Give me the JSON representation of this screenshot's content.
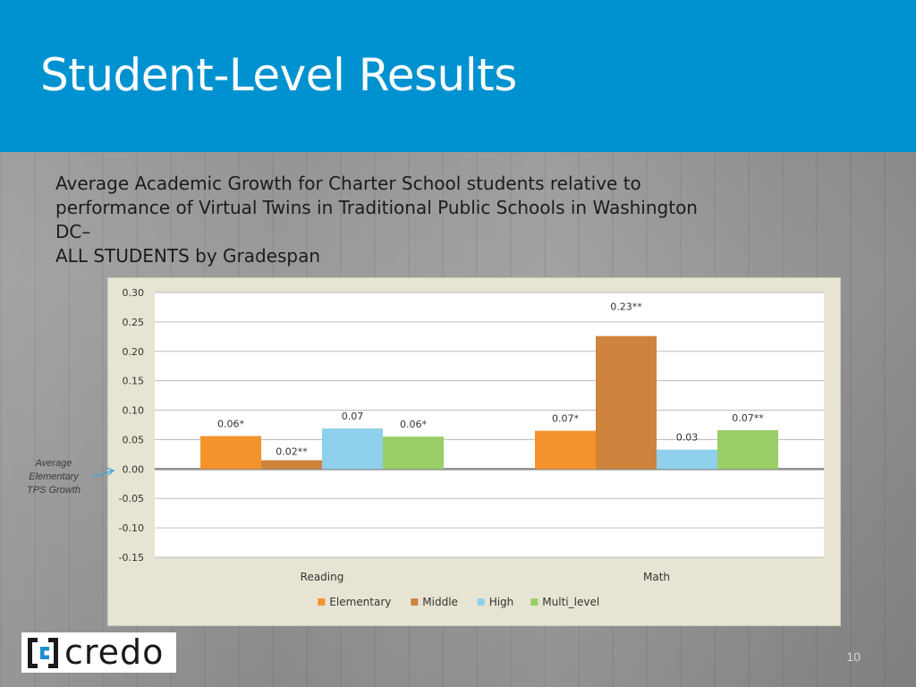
{
  "slide": {
    "title": "Student-Level Results",
    "subtitle_lines": [
      "Average Academic Growth for Charter School students relative to",
      "performance of Virtual Twins in Traditional Public Schools in Washington",
      "DC–",
      "ALL STUDENTS by Gradespan"
    ],
    "annotation": "Average Elementary TPS Growth",
    "logo_text": "credo",
    "page_number": "10"
  },
  "colors": {
    "header": "#0092d0",
    "Elementary": "#f4922b",
    "Middle": "#cf843d",
    "High": "#8fd0ec",
    "Multi_level": "#99cf66",
    "annotation_arrow": "#3aa7d8"
  },
  "chart_data": {
    "type": "bar",
    "title": "",
    "xlabel": "",
    "ylabel": "",
    "categories": [
      "Reading",
      "Math"
    ],
    "ylim": [
      -0.15,
      0.3
    ],
    "yticks": [
      "0.30",
      "0.25",
      "0.20",
      "0.15",
      "0.10",
      "0.05",
      "0.00",
      "-0.05",
      "-0.10",
      "-0.15"
    ],
    "grid": true,
    "legend_position": "bottom",
    "series": [
      {
        "name": "Elementary",
        "values": [
          0.056,
          0.065
        ],
        "labels": [
          "0.06*",
          "0.07*"
        ]
      },
      {
        "name": "Middle",
        "values": [
          0.015,
          0.226
        ],
        "labels": [
          "0.02**",
          "0.23**"
        ]
      },
      {
        "name": "High",
        "values": [
          0.069,
          0.033
        ],
        "labels": [
          "0.07",
          "0.03"
        ]
      },
      {
        "name": "Multi_level",
        "values": [
          0.055,
          0.066
        ],
        "labels": [
          "0.06*",
          "0.07**"
        ]
      }
    ]
  }
}
